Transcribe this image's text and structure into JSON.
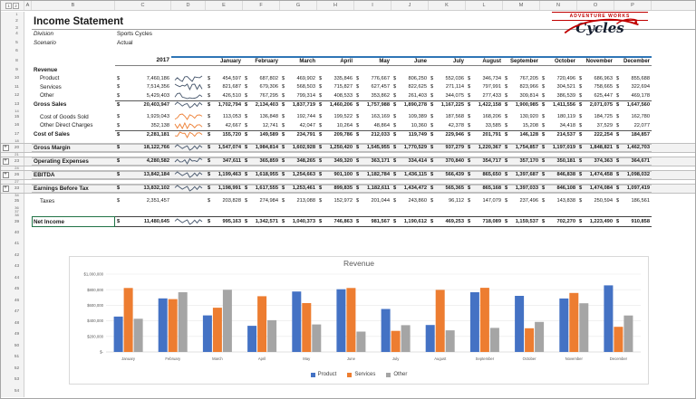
{
  "sheet": {
    "column_letters": [
      "A",
      "B",
      "C",
      "D",
      "E",
      "F",
      "G",
      "H",
      "I",
      "J",
      "K",
      "L",
      "M",
      "N",
      "O",
      "P"
    ],
    "outline_levels": [
      "1",
      "2"
    ],
    "title": "Income Statement",
    "currency_symbol": "$",
    "logo": {
      "line1": "ADVENTURE WORKS",
      "line2": "Cycles"
    },
    "year_header": "2017",
    "months": [
      "January",
      "February",
      "March",
      "April",
      "May",
      "June",
      "July",
      "August",
      "September",
      "October",
      "November",
      "December"
    ],
    "rows": [
      {
        "num": "1",
        "type": "gap"
      },
      {
        "num": "2",
        "type": "title"
      },
      {
        "num": "3",
        "type": "rule"
      },
      {
        "num": "4",
        "type": "meta",
        "label": "Division",
        "value": "Sports Cycles"
      },
      {
        "num": "5",
        "type": "meta",
        "label": "Scenario",
        "value": "Actual"
      },
      {
        "num": "6",
        "type": "blank"
      },
      {
        "num": "8",
        "type": "header"
      },
      {
        "num": "9",
        "type": "section",
        "label": "Revenue"
      },
      {
        "num": "10",
        "type": "item",
        "label": "Product",
        "spark": "navy",
        "total": 7460186,
        "months": [
          454597,
          687802,
          469902,
          335846,
          776667,
          806250,
          552036,
          346734,
          767205,
          720496,
          686963,
          855688
        ]
      },
      {
        "num": "11",
        "type": "item",
        "label": "Services",
        "spark": "navy",
        "total": 7514356,
        "months": [
          821687,
          679306,
          568503,
          715827,
          627457,
          822625,
          271114,
          797991,
          823966,
          304521,
          758665,
          322694
        ]
      },
      {
        "num": "12",
        "type": "item",
        "label": "Other",
        "spark": "navy",
        "total": 5429403,
        "months": [
          426510,
          767295,
          799314,
          408533,
          353862,
          261403,
          344075,
          277433,
          309814,
          386539,
          625447,
          469178
        ]
      },
      {
        "num": "13",
        "type": "subtotal",
        "label": "Gross Sales",
        "spark": "navy",
        "total": 20403947,
        "months": [
          1702794,
          2134403,
          1837719,
          1460206,
          1757988,
          1890278,
          1167225,
          1422158,
          1900985,
          1411556,
          2071075,
          1647560
        ]
      },
      {
        "num": "14",
        "type": "gap"
      },
      {
        "num": "15",
        "type": "item",
        "label": "Cost of Goods Sold",
        "spark": "orange",
        "total": 1929043,
        "months": [
          113053,
          136848,
          192744,
          199522,
          163169,
          109389,
          187568,
          168206,
          130920,
          180119,
          184725,
          162780
        ]
      },
      {
        "num": "16",
        "type": "item",
        "label": "Other Direct Charges",
        "spark": "orange",
        "total": 352138,
        "months": [
          42667,
          12741,
          42047,
          10264,
          48864,
          10360,
          42378,
          33585,
          15208,
          34418,
          37529,
          22077
        ]
      },
      {
        "num": "17",
        "type": "subtotal",
        "label": "Cost of Sales",
        "spark": "orange",
        "total": 2281181,
        "months": [
          155720,
          149589,
          234791,
          209786,
          212033,
          119749,
          229946,
          201791,
          146128,
          214537,
          222254,
          184857
        ]
      },
      {
        "num": "18",
        "type": "gap"
      },
      {
        "num": "20",
        "type": "band",
        "label": "Gross Margin",
        "spark": "navy",
        "plus": true,
        "total": 18122766,
        "months": [
          1547074,
          1984814,
          1602928,
          1250420,
          1545955,
          1770529,
          937279,
          1220367,
          1754857,
          1197019,
          1848821,
          1462703
        ]
      },
      {
        "num": "21",
        "type": "gap"
      },
      {
        "num": "23",
        "type": "band",
        "label": "Operating Expenses",
        "spark": "navy",
        "plus": true,
        "total": 4280582,
        "months": [
          347611,
          365859,
          348265,
          349320,
          363171,
          334414,
          370840,
          354717,
          357170,
          350181,
          374363,
          364671
        ]
      },
      {
        "num": "24",
        "type": "gap"
      },
      {
        "num": "26",
        "type": "band",
        "label": "EBITDA",
        "spark": "navy",
        "plus": true,
        "total": 13842184,
        "months": [
          1199463,
          1618955,
          1254663,
          901100,
          1182784,
          1436115,
          566439,
          865650,
          1397687,
          846838,
          1474458,
          1098032
        ]
      },
      {
        "num": "27",
        "type": "gap"
      },
      {
        "num": "33",
        "type": "band",
        "label": "Earnings Before Tax",
        "spark": "navy",
        "plus": true,
        "total": 13832102,
        "months": [
          1198991,
          1617555,
          1253461,
          899835,
          1182611,
          1434472,
          565365,
          865168,
          1397033,
          846108,
          1474084,
          1097419
        ]
      },
      {
        "num": "34",
        "type": "gap"
      },
      {
        "num": "35",
        "type": "item",
        "label": "Taxes",
        "total": 2351457,
        "months": [
          203828,
          274984,
          213088,
          152972,
          201044,
          243860,
          96112,
          147079,
          237496,
          143838,
          250594,
          186561
        ]
      },
      {
        "num": "36",
        "type": "gap"
      },
      {
        "num": "37",
        "type": "gap"
      },
      {
        "num": "38",
        "type": "gap"
      },
      {
        "num": "39",
        "type": "net",
        "label": "Net Income",
        "spark": "navy",
        "total": 11480645,
        "months": [
          995163,
          1342571,
          1040373,
          746863,
          981567,
          1190612,
          469253,
          718089,
          1159537,
          702270,
          1223490,
          910858
        ]
      }
    ],
    "gutter_tail": [
      "40",
      "41",
      "42",
      "43",
      "44",
      "45",
      "46",
      "47",
      "48",
      "49",
      "50",
      "51",
      "52",
      "53",
      "54"
    ]
  },
  "chart_data": {
    "type": "bar",
    "title": "Revenue",
    "categories": [
      "January",
      "February",
      "March",
      "April",
      "May",
      "June",
      "July",
      "August",
      "September",
      "October",
      "November",
      "December"
    ],
    "series": [
      {
        "name": "Product",
        "color": "#4472C4",
        "values": [
          454597,
          687802,
          469902,
          335846,
          776667,
          806250,
          552036,
          346734,
          767205,
          720496,
          686963,
          855688
        ]
      },
      {
        "name": "Services",
        "color": "#ED7D31",
        "values": [
          821687,
          679306,
          568503,
          715827,
          627457,
          822625,
          271114,
          797991,
          823966,
          304521,
          758665,
          322694
        ]
      },
      {
        "name": "Other",
        "color": "#A5A5A5",
        "values": [
          426510,
          767295,
          799314,
          408533,
          353862,
          261403,
          344075,
          277433,
          309814,
          386539,
          625447,
          469178
        ]
      }
    ],
    "xlabel": "",
    "ylabel": "",
    "ylim": [
      0,
      1000000
    ],
    "y_ticks": [
      "$-",
      "$200,000",
      "$400,000",
      "$600,000",
      "$800,000",
      "$1,000,000"
    ],
    "grid": true,
    "legend_position": "bottom"
  },
  "colors": {
    "accent_blue": "#2E75B6",
    "bar_product": "#4472C4",
    "bar_services": "#ED7D31",
    "bar_other": "#A5A5A5",
    "spark_navy": "#44546A",
    "spark_orange": "#ED7D31",
    "logo_red": "#C00000",
    "selection_green": "#217346",
    "band_fill": "#F2F2F2"
  }
}
